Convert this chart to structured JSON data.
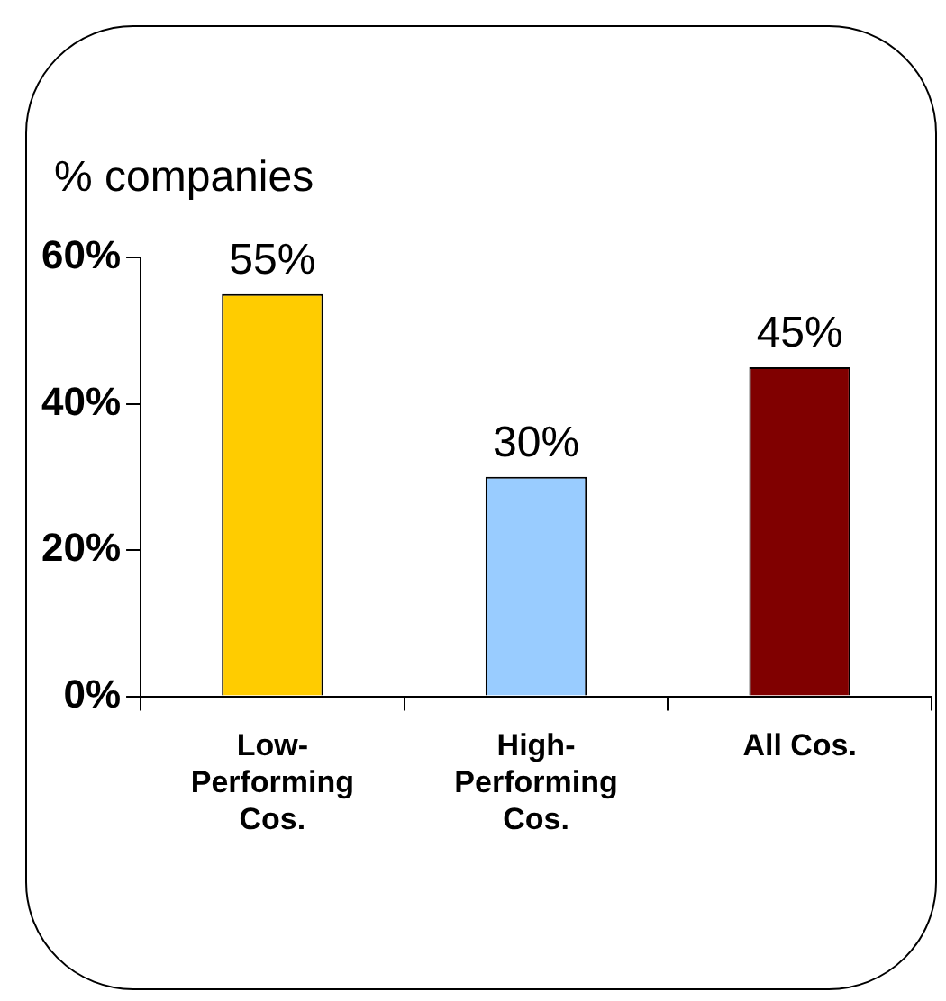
{
  "chart_data": {
    "type": "bar",
    "ylabel": "% companies",
    "categories": [
      "Low-Performing Cos.",
      "High-Performing Cos.",
      "All Cos."
    ],
    "values": [
      55,
      30,
      45
    ],
    "colors": [
      "#ffcc00",
      "#99ccff",
      "#800000"
    ],
    "value_labels": [
      "55%",
      "30%",
      "45%"
    ],
    "ylim": [
      0,
      60
    ],
    "yticks": [
      {
        "value": 0,
        "label": "0%"
      },
      {
        "value": 20,
        "label": "20%"
      },
      {
        "value": 40,
        "label": "40%"
      },
      {
        "value": 60,
        "label": "60%"
      }
    ],
    "grid": false,
    "legend": false
  }
}
